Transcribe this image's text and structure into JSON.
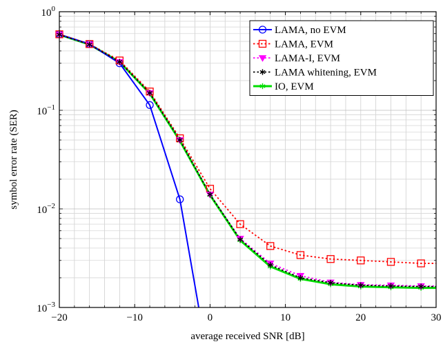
{
  "chart_data": {
    "type": "line",
    "xlabel": "average received SNR [dB]",
    "ylabel": "symbol error rate (SER)",
    "xlim": [
      -20,
      30
    ],
    "ylim": [
      0.001,
      1
    ],
    "yscale": "log",
    "grid": true,
    "legend_position": "top-right",
    "x_ticks": [
      {
        "value": -20,
        "label": "−20"
      },
      {
        "value": -10,
        "label": "−10"
      },
      {
        "value": 0,
        "label": "0"
      },
      {
        "value": 10,
        "label": "10"
      },
      {
        "value": 20,
        "label": "20"
      },
      {
        "value": 30,
        "label": "30"
      }
    ],
    "y_ticks": [
      {
        "value": 1,
        "base": "10",
        "exp": "0"
      },
      {
        "value": 0.1,
        "base": "10",
        "exp": "−1"
      },
      {
        "value": 0.01,
        "base": "10",
        "exp": "−2"
      },
      {
        "value": 0.001,
        "base": "10",
        "exp": "−3"
      }
    ],
    "series": [
      {
        "name": "LAMA, no EVM",
        "color": "#0000ff",
        "line_style": "solid",
        "marker": "circle",
        "points": [
          [
            -20,
            0.59
          ],
          [
            -16,
            0.47
          ],
          [
            -12,
            0.3
          ],
          [
            -8,
            0.113
          ],
          [
            -4,
            0.0125
          ],
          [
            -1.5,
            0.001
          ]
        ],
        "markers": [
          [
            -20,
            0.59
          ],
          [
            -16,
            0.47
          ],
          [
            -12,
            0.3
          ],
          [
            -8,
            0.113
          ],
          [
            -4,
            0.0125
          ]
        ]
      },
      {
        "name": "LAMA, EVM",
        "color": "#ff0000",
        "line_style": "dotted",
        "marker": "square",
        "points": [
          [
            -20,
            0.59
          ],
          [
            -16,
            0.47
          ],
          [
            -12,
            0.32
          ],
          [
            -8,
            0.155
          ],
          [
            -4,
            0.052
          ],
          [
            0,
            0.016
          ],
          [
            4,
            0.007
          ],
          [
            8,
            0.0042
          ],
          [
            12,
            0.0034
          ],
          [
            16,
            0.0031
          ],
          [
            20,
            0.003
          ],
          [
            24,
            0.0029
          ],
          [
            28,
            0.0028
          ],
          [
            30,
            0.0028
          ]
        ],
        "markers": [
          [
            -20,
            0.59
          ],
          [
            -16,
            0.47
          ],
          [
            -12,
            0.32
          ],
          [
            -8,
            0.155
          ],
          [
            -4,
            0.052
          ],
          [
            0,
            0.016
          ],
          [
            4,
            0.007
          ],
          [
            8,
            0.0042
          ],
          [
            12,
            0.0034
          ],
          [
            16,
            0.0031
          ],
          [
            20,
            0.003
          ],
          [
            24,
            0.0029
          ],
          [
            28,
            0.0028
          ]
        ]
      },
      {
        "name": "LAMA-I, EVM",
        "color": "#ff00ff",
        "line_style": "dotted",
        "marker": "triangle-down",
        "points": [
          [
            -20,
            0.585
          ],
          [
            -16,
            0.465
          ],
          [
            -12,
            0.31
          ],
          [
            -8,
            0.15
          ],
          [
            -4,
            0.05
          ],
          [
            0,
            0.014
          ],
          [
            4,
            0.005
          ],
          [
            8,
            0.0028
          ],
          [
            12,
            0.0021
          ],
          [
            16,
            0.0018
          ],
          [
            20,
            0.0017
          ],
          [
            24,
            0.00168
          ],
          [
            28,
            0.00165
          ],
          [
            30,
            0.00165
          ]
        ],
        "markers": [
          [
            -20,
            0.585
          ],
          [
            -16,
            0.465
          ],
          [
            -12,
            0.31
          ],
          [
            -8,
            0.15
          ],
          [
            -4,
            0.05
          ],
          [
            0,
            0.014
          ],
          [
            4,
            0.005
          ],
          [
            8,
            0.0028
          ],
          [
            12,
            0.0021
          ],
          [
            16,
            0.0018
          ],
          [
            20,
            0.0017
          ],
          [
            24,
            0.00168
          ],
          [
            28,
            0.00165
          ]
        ]
      },
      {
        "name": "LAMA whitening, EVM",
        "color": "#000000",
        "line_style": "dotted",
        "marker": "asterisk",
        "points": [
          [
            -20,
            0.585
          ],
          [
            -16,
            0.465
          ],
          [
            -12,
            0.31
          ],
          [
            -8,
            0.15
          ],
          [
            -4,
            0.05
          ],
          [
            0,
            0.014
          ],
          [
            4,
            0.0049
          ],
          [
            8,
            0.0027
          ],
          [
            12,
            0.002
          ],
          [
            16,
            0.00178
          ],
          [
            20,
            0.00168
          ],
          [
            24,
            0.00165
          ],
          [
            28,
            0.00163
          ],
          [
            30,
            0.00163
          ]
        ],
        "markers": [
          [
            -20,
            0.585
          ],
          [
            -16,
            0.465
          ],
          [
            -12,
            0.31
          ],
          [
            -8,
            0.15
          ],
          [
            -4,
            0.05
          ],
          [
            0,
            0.014
          ],
          [
            4,
            0.0049
          ],
          [
            8,
            0.0027
          ],
          [
            12,
            0.002
          ],
          [
            16,
            0.00178
          ],
          [
            20,
            0.00168
          ],
          [
            24,
            0.00165
          ],
          [
            28,
            0.00163
          ]
        ]
      },
      {
        "name": "IO, EVM",
        "color": "#00dd00",
        "line_style": "solid",
        "marker": "asterisk",
        "points": [
          [
            -20,
            0.585
          ],
          [
            -16,
            0.465
          ],
          [
            -12,
            0.31
          ],
          [
            -8,
            0.148
          ],
          [
            -4,
            0.049
          ],
          [
            0,
            0.0138
          ],
          [
            4,
            0.0048
          ],
          [
            8,
            0.0026
          ],
          [
            12,
            0.00195
          ],
          [
            16,
            0.00172
          ],
          [
            20,
            0.00163
          ],
          [
            24,
            0.0016
          ],
          [
            28,
            0.00158
          ],
          [
            30,
            0.00158
          ]
        ],
        "markers": [
          [
            -20,
            0.585
          ],
          [
            -16,
            0.465
          ],
          [
            -12,
            0.31
          ],
          [
            -8,
            0.148
          ],
          [
            -4,
            0.049
          ],
          [
            0,
            0.0138
          ],
          [
            4,
            0.0048
          ],
          [
            8,
            0.0026
          ],
          [
            12,
            0.00195
          ],
          [
            16,
            0.00172
          ],
          [
            20,
            0.00163
          ],
          [
            24,
            0.0016
          ],
          [
            28,
            0.00158
          ]
        ]
      }
    ]
  }
}
